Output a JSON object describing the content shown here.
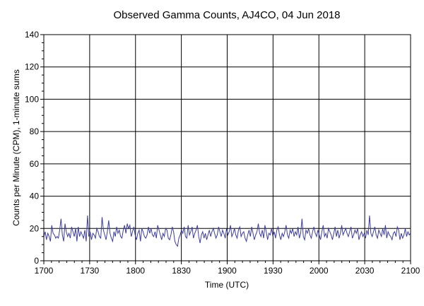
{
  "chart_data": {
    "type": "line",
    "title": "Observed Gamma Counts, AJ4CO, 04 Jun 2018",
    "xlabel": "Time (UTC)",
    "ylabel": "Counts per Minute (CPM), 1-minute sums",
    "x_range": [
      "1700",
      "2100"
    ],
    "ylim": [
      0,
      140
    ],
    "y_ticks": [
      0,
      20,
      40,
      60,
      80,
      100,
      120,
      140
    ],
    "x_ticks": [
      "1700",
      "1730",
      "1800",
      "1830",
      "1900",
      "1930",
      "2000",
      "2030",
      "2100"
    ],
    "grid": true,
    "series": [
      {
        "color": "#3c3ca0",
        "values": [
          15,
          18,
          13,
          17,
          15,
          12,
          22,
          17,
          16,
          14,
          15,
          14,
          19,
          26,
          16,
          12,
          23,
          18,
          15,
          17,
          14,
          21,
          18,
          15,
          20,
          12,
          21,
          15,
          18,
          16,
          14,
          19,
          12,
          28,
          15,
          18,
          13,
          17,
          16,
          14,
          20,
          18,
          15,
          14,
          27,
          19,
          16,
          13,
          18,
          25,
          17,
          14,
          12,
          18,
          15,
          21,
          17,
          19,
          15,
          14,
          19,
          22,
          17,
          23,
          20,
          22,
          15,
          18,
          21,
          16,
          13,
          17,
          19,
          12,
          20,
          18,
          15,
          14,
          16,
          21,
          17,
          20,
          16,
          15,
          18,
          14,
          22,
          19,
          16,
          13,
          17,
          15,
          20,
          19,
          14,
          13,
          16,
          21,
          18,
          12,
          10,
          9,
          14,
          16,
          19,
          17,
          21,
          15,
          14,
          22,
          16,
          18,
          21,
          14,
          17,
          19,
          22,
          15,
          11,
          16,
          18,
          14,
          17,
          13,
          16,
          19,
          15,
          18,
          20,
          17,
          14,
          16,
          21,
          18,
          15,
          19,
          17,
          14,
          20,
          16,
          18,
          22,
          15,
          17,
          20,
          16,
          14,
          19,
          21,
          15,
          17,
          18,
          14,
          12,
          16,
          19,
          15,
          21,
          17,
          13,
          16,
          18,
          23,
          17,
          15,
          19,
          14,
          22,
          18,
          13,
          17,
          16,
          20,
          15,
          18,
          14,
          19,
          21,
          16,
          13,
          17,
          15,
          18,
          22,
          16,
          14,
          19,
          17,
          20,
          15,
          18,
          16,
          21,
          14,
          17,
          26,
          15,
          13,
          19,
          17,
          20,
          16,
          14,
          18,
          21,
          17,
          15,
          19,
          16,
          13,
          18,
          22,
          15,
          17,
          14,
          20,
          18,
          16,
          13,
          17,
          21,
          15,
          19,
          14,
          17,
          22,
          16,
          18,
          20,
          17,
          15,
          18,
          21,
          14,
          16,
          19,
          17,
          20,
          13,
          16,
          18,
          15,
          17,
          14,
          19,
          16,
          28,
          17,
          15,
          18,
          21,
          16,
          14,
          19,
          17,
          15,
          20,
          16,
          22,
          14,
          18,
          16,
          15,
          13,
          17,
          18,
          15,
          21,
          19,
          13,
          17,
          14,
          16,
          20,
          15,
          18,
          16,
          17
        ]
      }
    ]
  }
}
